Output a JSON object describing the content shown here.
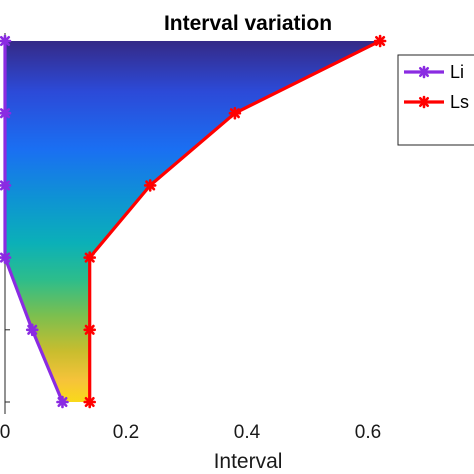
{
  "chart_data": {
    "type": "line",
    "title": "Interval variation",
    "xlabel": "Interval",
    "ylabel": "",
    "xlim": [
      0,
      0.8
    ],
    "x_ticks": [
      0,
      0.2,
      0.4,
      0.6
    ],
    "x_tick_labels": [
      "0",
      "0.2",
      "0.4",
      "0.6"
    ],
    "y_levels": 6,
    "fill_between_series": true,
    "fill_colormap": "parula (dark blue at top to yellow at bottom)",
    "legend_position": "top-right",
    "series": [
      {
        "name": "Li",
        "color": "#8a2be2",
        "marker": "asterisk",
        "x": [
          0.0,
          0.0,
          0.0,
          0.0,
          0.045,
          0.095
        ]
      },
      {
        "name": "Ls",
        "color": "#ff0000",
        "marker": "asterisk",
        "x": [
          0.62,
          0.38,
          0.24,
          0.14,
          0.14,
          0.14
        ]
      }
    ]
  }
}
